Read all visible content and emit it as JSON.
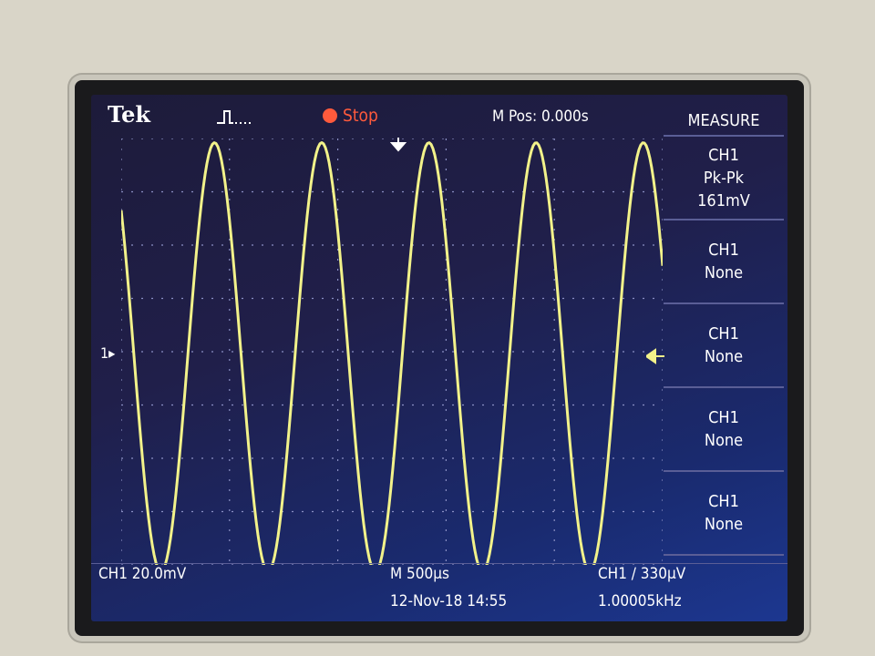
{
  "header": {
    "brand": "Tek",
    "trigger_icon": "trigger-waveform-icon",
    "status": "Stop",
    "status_color": "#ff5a3c",
    "position": "M Pos: 0.000s"
  },
  "measure_menu": {
    "title": "MEASURE",
    "slots": [
      {
        "channel": "CH1",
        "type": "Pk-Pk",
        "value": "161mV"
      },
      {
        "channel": "CH1",
        "type": "None"
      },
      {
        "channel": "CH1",
        "type": "None"
      },
      {
        "channel": "CH1",
        "type": "None"
      },
      {
        "channel": "CH1",
        "type": "None"
      }
    ]
  },
  "channel_marker": "1",
  "footer": {
    "ch1_scale": "CH1  20.0mV",
    "timebase": "M 500µs",
    "trigger": "CH1 ∕ 330µV",
    "date": "12-Nov-18 14:55",
    "frequency": "1.00005kHz"
  },
  "trace": {
    "color": "#f2f28a",
    "frequency_khz": 1.00005,
    "cycles_visible": 5,
    "pk_pk_mv": 161,
    "volts_per_div_mv": 20
  }
}
